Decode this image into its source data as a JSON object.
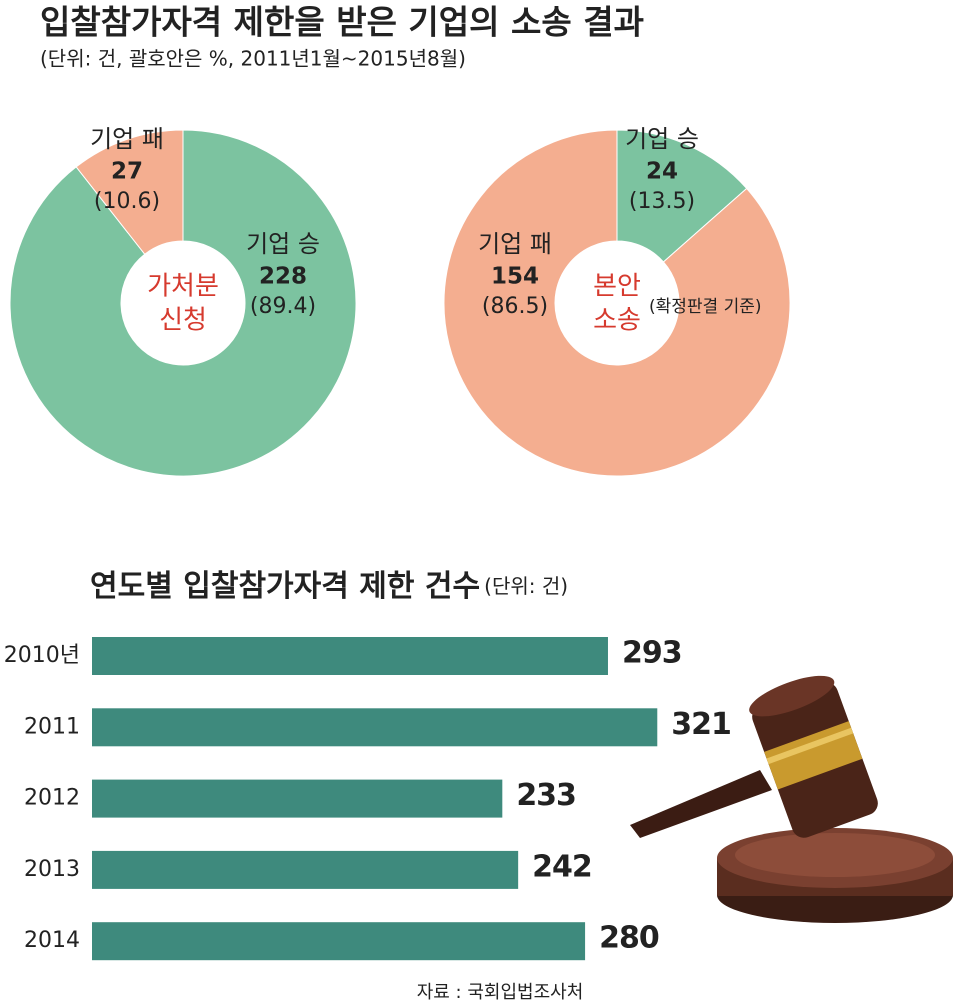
{
  "chart_data": [
    {
      "type": "pie",
      "title": "입찰참가자격 제한을 받은 기업의 소송 결과",
      "subtitle": "(단위: 건, 괄호안은 %, 2011년1월~2015년8월)",
      "center_label": [
        "가처분",
        "신청"
      ],
      "categories": [
        "기업 승",
        "기업 패"
      ],
      "values": [
        228,
        27
      ],
      "shares": [
        89.4,
        10.6
      ],
      "share_labels": [
        "(89.4)",
        "(10.6)"
      ],
      "colors": [
        "#7cc3a0",
        "#f4ae90"
      ]
    },
    {
      "type": "pie",
      "center_label": [
        "본안",
        "소송"
      ],
      "center_note": "(확정판결 기준)",
      "categories": [
        "기업 승",
        "기업 패"
      ],
      "values": [
        24,
        154
      ],
      "shares": [
        13.5,
        86.5
      ],
      "share_labels": [
        "(13.5)",
        "(86.5)"
      ],
      "colors": [
        "#7cc3a0",
        "#f4ae90"
      ]
    },
    {
      "type": "bar",
      "orientation": "horizontal",
      "title": "연도별 입찰참가자격 제한 건수",
      "unit": "(단위: 건)",
      "categories": [
        "2010년",
        "2011",
        "2012",
        "2013",
        "2014"
      ],
      "values": [
        293,
        321,
        233,
        242,
        280
      ],
      "color": "#3e8a7d",
      "source": "자료 : 국회입법조사처"
    }
  ]
}
